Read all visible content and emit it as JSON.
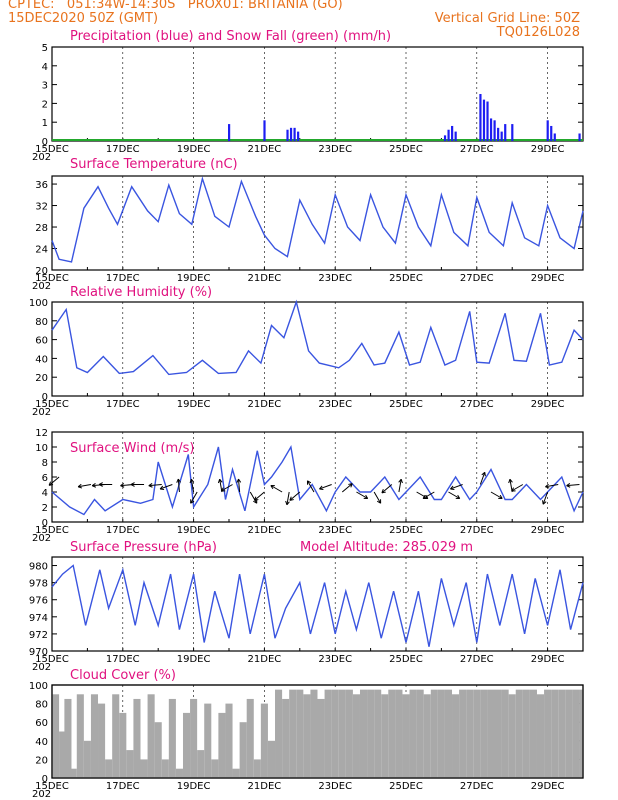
{
  "header": {
    "line1_left": "CPTEC:   051:34W-14:30S   PROX01: BRITANIA (GO)",
    "line2_left": "15DEC2020 50Z (GMT)",
    "line2_right": "Vertical Grid Line: 50Z",
    "line3_right": "TQ0126L028"
  },
  "colors": {
    "header": "#e8731e",
    "panel_title": "#e0117f",
    "precip": "#1d1df2",
    "snow": "#22a82c",
    "line": "#3a55e0",
    "cloud": "#a9a9a9",
    "arrow": "#000000"
  },
  "x_axis": {
    "tick_labels": [
      "15DEC",
      "17DEC",
      "19DEC",
      "21DEC",
      "23DEC",
      "25DEC",
      "27DEC",
      "29DEC"
    ],
    "year_fragment": "202",
    "days_span": 15
  },
  "chart_data": [
    {
      "type": "bar",
      "title": "Precipitation (blue) and Snow Fall (green) (mm/h)",
      "ylim": [
        0,
        5
      ],
      "yticks": [
        "0",
        "1",
        "2",
        "3",
        "4",
        "5"
      ],
      "series": [
        {
          "name": "Precipitation",
          "color": "#1d1df2",
          "points": [
            [
              5.0,
              0.9
            ],
            [
              6.0,
              1.1
            ],
            [
              6.65,
              0.6
            ],
            [
              6.75,
              0.7
            ],
            [
              6.85,
              0.7
            ],
            [
              6.95,
              0.5
            ],
            [
              11.1,
              0.3
            ],
            [
              11.2,
              0.6
            ],
            [
              11.3,
              0.8
            ],
            [
              11.4,
              0.5
            ],
            [
              12.1,
              2.5
            ],
            [
              12.2,
              2.2
            ],
            [
              12.3,
              2.1
            ],
            [
              12.4,
              1.2
            ],
            [
              12.5,
              1.1
            ],
            [
              12.6,
              0.7
            ],
            [
              12.7,
              0.5
            ],
            [
              12.8,
              0.9
            ],
            [
              13.0,
              0.9
            ],
            [
              14.0,
              1.1
            ],
            [
              14.1,
              0.8
            ],
            [
              14.2,
              0.4
            ],
            [
              14.9,
              0.4
            ]
          ]
        },
        {
          "name": "Snow Fall",
          "color": "#22a82c",
          "points": []
        }
      ]
    },
    {
      "type": "line",
      "title": "Surface Temperature (nC)",
      "ylim": [
        20,
        37.5
      ],
      "yticks": [
        "20",
        "24",
        "28",
        "32",
        "36"
      ],
      "x": [
        0,
        0.2,
        0.55,
        0.9,
        1.3,
        1.6,
        1.85,
        2.25,
        2.7,
        3.0,
        3.3,
        3.6,
        3.95,
        4.25,
        4.6,
        5.0,
        5.35,
        5.75,
        6.0,
        6.3,
        6.65,
        7.0,
        7.35,
        7.7,
        8.0,
        8.35,
        8.7,
        9.0,
        9.35,
        9.7,
        10.0,
        10.35,
        10.7,
        11.0,
        11.35,
        11.75,
        12.0,
        12.35,
        12.75,
        13.0,
        13.35,
        13.75,
        14.0,
        14.35,
        14.75,
        15.0
      ],
      "y": [
        25.5,
        22,
        21.5,
        31.5,
        35.5,
        31.5,
        28.5,
        35.5,
        31,
        29,
        35.8,
        30.5,
        28.5,
        37,
        30,
        28,
        36.5,
        30,
        26.5,
        24,
        22.5,
        33,
        28.5,
        25,
        34,
        28,
        25.5,
        34,
        28,
        25,
        34,
        28,
        24.5,
        34,
        27,
        24.5,
        33.5,
        27,
        24.5,
        32.5,
        26,
        24.5,
        32,
        26,
        24,
        31
      ]
    },
    {
      "type": "line",
      "title": "Relative Humidity (%)",
      "ylim": [
        0,
        100
      ],
      "yticks": [
        "0",
        "20",
        "40",
        "60",
        "80",
        "100"
      ],
      "x": [
        0,
        0.4,
        0.7,
        1.0,
        1.45,
        1.9,
        2.3,
        2.85,
        3.3,
        3.8,
        4.25,
        4.7,
        5.2,
        5.55,
        5.9,
        6.2,
        6.55,
        6.9,
        7.25,
        7.55,
        8.1,
        8.4,
        8.75,
        9.1,
        9.4,
        9.8,
        10.1,
        10.4,
        10.7,
        11.1,
        11.4,
        11.8,
        12.0,
        12.35,
        12.8,
        13.05,
        13.4,
        13.8,
        14.05,
        14.4,
        14.75,
        15.0
      ],
      "y": [
        70,
        92,
        30,
        25,
        42,
        24,
        26,
        43,
        23,
        25,
        38,
        24,
        25,
        48,
        35,
        75,
        62,
        100,
        48,
        35,
        30,
        38,
        56,
        33,
        35,
        68,
        33,
        36,
        73,
        33,
        38,
        90,
        36,
        35,
        88,
        38,
        37,
        88,
        33,
        36,
        70,
        60
      ]
    },
    {
      "type": "line",
      "title": "Surface Wind (m/s)",
      "ylim": [
        0,
        12
      ],
      "yticks": [
        "0",
        "2",
        "4",
        "6",
        "8",
        "10",
        "12"
      ],
      "x": [
        0,
        0.5,
        0.9,
        1.2,
        1.5,
        2.0,
        2.5,
        2.85,
        3.0,
        3.4,
        3.85,
        4.0,
        4.4,
        4.7,
        4.9,
        5.1,
        5.45,
        5.8,
        6.0,
        6.2,
        6.5,
        6.75,
        7.0,
        7.35,
        7.75,
        8.0,
        8.3,
        8.7,
        9.0,
        9.4,
        9.8,
        10.0,
        10.4,
        10.8,
        11.0,
        11.4,
        11.8,
        12.0,
        12.4,
        12.8,
        13.0,
        13.4,
        13.8,
        14.0,
        14.4,
        14.75,
        15.0
      ],
      "y": [
        4,
        2,
        1,
        3,
        1.5,
        3,
        2.5,
        3,
        8,
        2,
        9,
        2,
        5,
        10,
        3,
        7,
        1.5,
        9.5,
        5,
        6,
        8,
        10,
        3,
        5,
        1.5,
        4,
        6,
        4,
        4,
        6,
        3,
        4,
        6,
        3,
        3,
        6,
        3,
        4,
        7,
        3,
        3,
        5,
        3,
        4,
        6,
        1.5,
        4
      ],
      "arrows": [
        [
          0.2,
          6,
          -140
        ],
        [
          1.1,
          5,
          -170
        ],
        [
          1.5,
          5,
          -175
        ],
        [
          1.7,
          5,
          -180
        ],
        [
          2.3,
          5,
          -175
        ],
        [
          2.6,
          5,
          -180
        ],
        [
          3.1,
          5,
          -175
        ],
        [
          3.4,
          5,
          -160
        ],
        [
          3.6,
          4,
          95
        ],
        [
          4.0,
          4,
          100
        ],
        [
          4.1,
          4,
          -120
        ],
        [
          4.8,
          4,
          100
        ],
        [
          5.1,
          5,
          -150
        ],
        [
          5.3,
          4,
          95
        ],
        [
          5.6,
          4,
          -60
        ],
        [
          6.0,
          4,
          -140
        ],
        [
          6.5,
          4,
          150
        ],
        [
          6.7,
          4,
          -100
        ],
        [
          7.0,
          4,
          -140
        ],
        [
          7.4,
          4,
          120
        ],
        [
          7.9,
          5,
          -160
        ],
        [
          8.2,
          4,
          40
        ],
        [
          8.6,
          4,
          -30
        ],
        [
          9.1,
          4,
          -60
        ],
        [
          9.6,
          5,
          -140
        ],
        [
          9.8,
          4,
          80
        ],
        [
          10.3,
          4,
          -30
        ],
        [
          10.8,
          4,
          -150
        ],
        [
          11.2,
          4,
          -30
        ],
        [
          11.6,
          5,
          -160
        ],
        [
          12.1,
          5,
          70
        ],
        [
          12.4,
          4,
          -30
        ],
        [
          13.0,
          4,
          100
        ],
        [
          13.3,
          5,
          -150
        ],
        [
          14.0,
          4,
          -110
        ],
        [
          14.3,
          5,
          -170
        ],
        [
          14.9,
          5,
          -175
        ]
      ]
    },
    {
      "type": "line",
      "title": "Surface Pressure (hPa)",
      "subtitle": "Model Altitude: 285.029 m",
      "ylim": [
        970,
        981
      ],
      "yticks": [
        "970",
        "972",
        "974",
        "976",
        "978",
        "980"
      ],
      "x": [
        0,
        0.3,
        0.6,
        0.95,
        1.35,
        1.6,
        2.0,
        2.35,
        2.6,
        3.0,
        3.35,
        3.6,
        4.0,
        4.3,
        4.6,
        5.0,
        5.3,
        5.6,
        6.0,
        6.3,
        6.6,
        7.0,
        7.3,
        7.7,
        8.0,
        8.3,
        8.6,
        8.95,
        9.3,
        9.65,
        10.0,
        10.35,
        10.65,
        11.0,
        11.35,
        11.7,
        12.0,
        12.3,
        12.65,
        13.0,
        13.35,
        13.65,
        14.0,
        14.35,
        14.65,
        15.0
      ],
      "y": [
        977.5,
        979,
        980,
        973,
        979.5,
        975,
        979.5,
        973,
        978,
        973,
        979,
        972.5,
        979,
        971,
        977,
        971.5,
        979,
        972,
        979,
        971.5,
        975,
        978,
        972,
        978,
        972,
        977,
        972.5,
        978,
        971.5,
        977,
        971,
        977,
        970.5,
        978.5,
        973,
        978,
        971,
        979,
        973,
        979,
        972,
        978.5,
        973,
        979.5,
        972.5,
        978
      ]
    },
    {
      "type": "area",
      "title": "Cloud Cover (%)",
      "ylim": [
        0,
        100
      ],
      "yticks": [
        "0",
        "20",
        "40",
        "60",
        "80",
        "100"
      ],
      "x": [
        0,
        0.2,
        0.35,
        0.5,
        0.7,
        0.9,
        1.1,
        1.3,
        1.5,
        1.7,
        1.9,
        2.1,
        2.3,
        2.5,
        2.7,
        2.9,
        3.1,
        3.3,
        3.5,
        3.7,
        3.9,
        4.1,
        4.3,
        4.5,
        4.7,
        4.9,
        5.1,
        5.3,
        5.5,
        5.7,
        5.9,
        6.1,
        6.3,
        6.5,
        6.7,
        6.9,
        7.1,
        7.3,
        7.5,
        7.7,
        7.9,
        8.1,
        8.3,
        8.5,
        8.7,
        8.9,
        9.1,
        9.3,
        9.5,
        9.7,
        9.9,
        10.1,
        10.3,
        10.5,
        10.7,
        10.9,
        11.1,
        11.3,
        11.5,
        11.7,
        11.9,
        12.1,
        12.3,
        12.5,
        12.7,
        12.9,
        13.1,
        13.3,
        13.5,
        13.7,
        13.9,
        14.1,
        14.3,
        14.5,
        14.7,
        14.9
      ],
      "y": [
        90,
        50,
        85,
        10,
        90,
        40,
        90,
        80,
        20,
        90,
        70,
        30,
        85,
        20,
        90,
        60,
        20,
        85,
        10,
        70,
        85,
        30,
        80,
        20,
        70,
        80,
        10,
        60,
        85,
        20,
        80,
        40,
        95,
        85,
        95,
        95,
        90,
        95,
        85,
        95,
        95,
        95,
        95,
        90,
        95,
        95,
        95,
        90,
        95,
        95,
        90,
        95,
        95,
        90,
        95,
        95,
        95,
        90,
        95,
        95,
        95,
        95,
        95,
        95,
        95,
        90,
        95,
        95,
        95,
        90,
        95,
        95,
        95,
        95,
        95,
        95
      ]
    }
  ]
}
